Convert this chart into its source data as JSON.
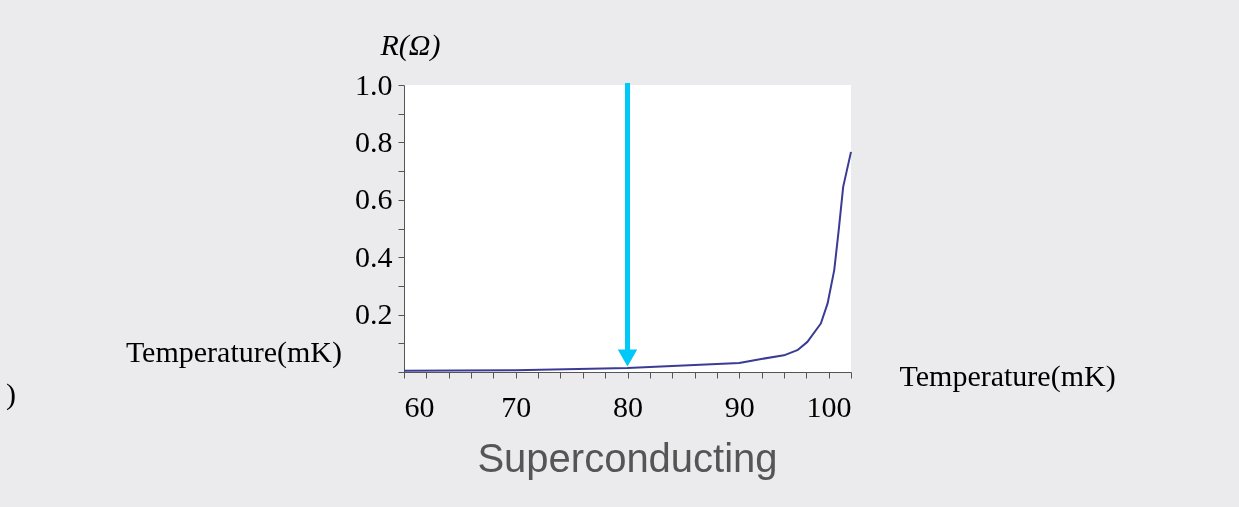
{
  "chart_data": {
    "type": "line",
    "title": "Superconducting",
    "xlabel": "Temperature(mK)",
    "ylabel": "R(Ω)",
    "annotations": [
      "Temperature(mK)",
      ")"
    ],
    "x": [
      60,
      70,
      80,
      90,
      91.6,
      94.0,
      95.2,
      96.1,
      97.3,
      97.9,
      98.5,
      98.9,
      99.3,
      100
    ],
    "series": [
      {
        "color": "#3b3b96",
        "values": [
          0.004,
          0.006,
          0.014,
          0.031,
          0.043,
          0.058,
          0.076,
          0.105,
          0.169,
          0.238,
          0.355,
          0.494,
          0.645,
          0.767
        ]
      }
    ],
    "xlim": [
      60,
      100
    ],
    "ylim": [
      0,
      1.0
    ],
    "xticks": [
      60,
      {
        "value": 62,
        "label": null
      },
      {
        "value": 64,
        "label": null
      },
      {
        "value": 66,
        "label": null
      },
      {
        "value": 68,
        "label": null
      },
      70,
      {
        "value": 72,
        "label": null
      },
      {
        "value": 74,
        "label": null
      },
      {
        "value": 76,
        "label": null
      },
      {
        "value": 78,
        "label": null
      },
      80,
      {
        "value": 82,
        "label": null
      },
      {
        "value": 84,
        "label": null
      },
      {
        "value": 86,
        "label": null
      },
      {
        "value": 88,
        "label": null
      },
      90,
      {
        "value": 92,
        "label": null
      },
      {
        "value": 94,
        "label": null
      },
      {
        "value": 96,
        "label": null
      },
      {
        "value": 98,
        "label": null
      },
      100
    ],
    "yticks": [
      {
        "value": 0,
        "label": null
      },
      {
        "value": 0.1,
        "label": null
      },
      {
        "value": 0.2,
        "label": "0.2"
      },
      {
        "value": 0.3,
        "label": null
      },
      {
        "value": 0.4,
        "label": "0.4"
      },
      {
        "value": 0.5,
        "label": null
      },
      {
        "value": 0.6,
        "label": "0.6"
      },
      {
        "value": 0.7,
        "label": null
      },
      {
        "value": 0.8,
        "label": "0.8"
      },
      {
        "value": 0.9,
        "label": null
      },
      {
        "value": 1.0,
        "label": "1.0"
      }
    ],
    "ref_lines": [
      {
        "axis": "x",
        "value": 80,
        "color": "#00c8f8"
      }
    ],
    "grid": false,
    "marker": "none",
    "line_style": "solid"
  }
}
